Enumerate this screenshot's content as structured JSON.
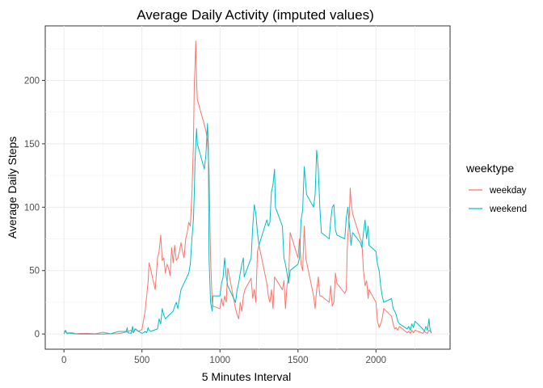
{
  "chart_data": {
    "type": "line",
    "title": "Average Daily Activity (imputed values)",
    "xlabel": "5 Minutes Interval",
    "ylabel": "Average Daily Steps",
    "xlim": [
      -120,
      2475
    ],
    "ylim": [
      -12,
      243
    ],
    "xticks": [
      0,
      500,
      1000,
      1500,
      2000
    ],
    "yticks": [
      0,
      50,
      100,
      150,
      200
    ],
    "grid": true,
    "legend": {
      "title": "weektype",
      "placement": "right"
    },
    "series": [
      {
        "name": "weekday",
        "color": "#F8766D",
        "points": [
          [
            0,
            2.3
          ],
          [
            25,
            0.4
          ],
          [
            50,
            1.2
          ],
          [
            75,
            0.2
          ],
          [
            100,
            0.4
          ],
          [
            150,
            0.5
          ],
          [
            200,
            0.1
          ],
          [
            250,
            1.4
          ],
          [
            300,
            0.1
          ],
          [
            350,
            0.3
          ],
          [
            400,
            1.5
          ],
          [
            430,
            3
          ],
          [
            445,
            1.2
          ],
          [
            460,
            4
          ],
          [
            475,
            2
          ],
          [
            500,
            3.5
          ],
          [
            520,
            18
          ],
          [
            540,
            42
          ],
          [
            545,
            56
          ],
          [
            555,
            52
          ],
          [
            570,
            43
          ],
          [
            585,
            35
          ],
          [
            600,
            60
          ],
          [
            610,
            65
          ],
          [
            620,
            78
          ],
          [
            630,
            58
          ],
          [
            640,
            60
          ],
          [
            650,
            48
          ],
          [
            660,
            55
          ],
          [
            670,
            52
          ],
          [
            680,
            46
          ],
          [
            690,
            68
          ],
          [
            700,
            56
          ],
          [
            710,
            70
          ],
          [
            720,
            58
          ],
          [
            730,
            60
          ],
          [
            740,
            65
          ],
          [
            750,
            72
          ],
          [
            760,
            65
          ],
          [
            770,
            60
          ],
          [
            780,
            75
          ],
          [
            790,
            80
          ],
          [
            800,
            88
          ],
          [
            810,
            85
          ],
          [
            820,
            110
          ],
          [
            830,
            150
          ],
          [
            835,
            195
          ],
          [
            840,
            210
          ],
          [
            845,
            231
          ],
          [
            850,
            200
          ],
          [
            855,
            185
          ],
          [
            900,
            165
          ],
          [
            910,
            160
          ],
          [
            920,
            152
          ],
          [
            930,
            130
          ],
          [
            940,
            60
          ],
          [
            950,
            25
          ],
          [
            955,
            22
          ],
          [
            1000,
            20
          ],
          [
            1010,
            28
          ],
          [
            1020,
            22
          ],
          [
            1030,
            30
          ],
          [
            1040,
            25
          ],
          [
            1050,
            52
          ],
          [
            1100,
            20
          ],
          [
            1110,
            15
          ],
          [
            1120,
            12
          ],
          [
            1130,
            25
          ],
          [
            1140,
            18
          ],
          [
            1150,
            30
          ],
          [
            1160,
            35
          ],
          [
            1200,
            44
          ],
          [
            1210,
            28
          ],
          [
            1220,
            35
          ],
          [
            1230,
            25
          ],
          [
            1240,
            65
          ],
          [
            1250,
            70
          ],
          [
            1300,
            40
          ],
          [
            1310,
            30
          ],
          [
            1320,
            25
          ],
          [
            1330,
            35
          ],
          [
            1340,
            20
          ],
          [
            1350,
            45
          ],
          [
            1400,
            35
          ],
          [
            1410,
            42
          ],
          [
            1420,
            20
          ],
          [
            1430,
            38
          ],
          [
            1440,
            45
          ],
          [
            1450,
            80
          ],
          [
            1500,
            60
          ],
          [
            1510,
            75
          ],
          [
            1520,
            55
          ],
          [
            1530,
            50
          ],
          [
            1540,
            85
          ],
          [
            1550,
            60
          ],
          [
            1600,
            30
          ],
          [
            1610,
            20
          ],
          [
            1620,
            35
          ],
          [
            1630,
            45
          ],
          [
            1640,
            30
          ],
          [
            1650,
            30
          ],
          [
            1700,
            25
          ],
          [
            1710,
            38
          ],
          [
            1720,
            22
          ],
          [
            1730,
            25
          ],
          [
            1740,
            48
          ],
          [
            1750,
            40
          ],
          [
            1800,
            32
          ],
          [
            1810,
            35
          ],
          [
            1815,
            65
          ],
          [
            1820,
            78
          ],
          [
            1830,
            95
          ],
          [
            1835,
            115
          ],
          [
            1840,
            105
          ],
          [
            1850,
            95
          ],
          [
            1900,
            75
          ],
          [
            1910,
            72
          ],
          [
            1920,
            50
          ],
          [
            1930,
            38
          ],
          [
            1940,
            42
          ],
          [
            1950,
            28
          ],
          [
            1955,
            35
          ],
          [
            2000,
            25
          ],
          [
            2010,
            10
          ],
          [
            2020,
            5
          ],
          [
            2030,
            8
          ],
          [
            2040,
            12
          ],
          [
            2050,
            20
          ],
          [
            2100,
            14
          ],
          [
            2110,
            8
          ],
          [
            2120,
            4
          ],
          [
            2130,
            5
          ],
          [
            2140,
            3
          ],
          [
            2150,
            6
          ],
          [
            2200,
            1
          ],
          [
            2210,
            2
          ],
          [
            2220,
            0.5
          ],
          [
            2230,
            3
          ],
          [
            2240,
            1
          ],
          [
            2250,
            3
          ],
          [
            2300,
            0.5
          ],
          [
            2310,
            2
          ],
          [
            2320,
            1
          ],
          [
            2330,
            0.5
          ],
          [
            2340,
            3
          ],
          [
            2355,
            1.5
          ]
        ]
      },
      {
        "name": "weekend",
        "color": "#00BFC4",
        "points": [
          [
            0,
            0
          ],
          [
            10,
            3
          ],
          [
            20,
            0.2
          ],
          [
            30,
            1
          ],
          [
            40,
            0.5
          ],
          [
            55,
            0.3
          ],
          [
            100,
            0
          ],
          [
            150,
            0
          ],
          [
            200,
            0
          ],
          [
            250,
            0
          ],
          [
            300,
            0.2
          ],
          [
            350,
            2
          ],
          [
            400,
            2
          ],
          [
            405,
            5
          ],
          [
            410,
            1
          ],
          [
            430,
            0.5
          ],
          [
            440,
            6
          ],
          [
            445,
            1
          ],
          [
            455,
            4
          ],
          [
            500,
            0.5
          ],
          [
            510,
            1
          ],
          [
            520,
            2
          ],
          [
            530,
            1
          ],
          [
            540,
            5
          ],
          [
            545,
            3
          ],
          [
            555,
            2
          ],
          [
            600,
            4
          ],
          [
            610,
            12
          ],
          [
            620,
            8
          ],
          [
            630,
            20
          ],
          [
            640,
            15
          ],
          [
            650,
            12
          ],
          [
            700,
            18
          ],
          [
            710,
            22
          ],
          [
            720,
            25
          ],
          [
            730,
            20
          ],
          [
            740,
            28
          ],
          [
            750,
            35
          ],
          [
            800,
            48
          ],
          [
            810,
            55
          ],
          [
            820,
            75
          ],
          [
            830,
            90
          ],
          [
            835,
            110
          ],
          [
            840,
            135
          ],
          [
            845,
            150
          ],
          [
            850,
            162
          ],
          [
            855,
            150
          ],
          [
            900,
            130
          ],
          [
            910,
            142
          ],
          [
            920,
            166
          ],
          [
            925,
            150
          ],
          [
            930,
            60
          ],
          [
            940,
            25
          ],
          [
            950,
            18
          ],
          [
            955,
            30
          ],
          [
            1000,
            30
          ],
          [
            1010,
            40
          ],
          [
            1020,
            45
          ],
          [
            1030,
            60
          ],
          [
            1040,
            45
          ],
          [
            1050,
            38
          ],
          [
            1100,
            25
          ],
          [
            1110,
            35
          ],
          [
            1120,
            40
          ],
          [
            1130,
            48
          ],
          [
            1140,
            55
          ],
          [
            1150,
            60
          ],
          [
            1155,
            45
          ],
          [
            1200,
            60
          ],
          [
            1210,
            85
          ],
          [
            1220,
            102
          ],
          [
            1230,
            95
          ],
          [
            1240,
            80
          ],
          [
            1250,
            70
          ],
          [
            1300,
            90
          ],
          [
            1310,
            85
          ],
          [
            1320,
            88
          ],
          [
            1330,
            112
          ],
          [
            1340,
            118
          ],
          [
            1350,
            130
          ],
          [
            1355,
            100
          ],
          [
            1400,
            85
          ],
          [
            1410,
            60
          ],
          [
            1420,
            55
          ],
          [
            1430,
            48
          ],
          [
            1440,
            40
          ],
          [
            1450,
            50
          ],
          [
            1500,
            55
          ],
          [
            1510,
            60
          ],
          [
            1520,
            90
          ],
          [
            1530,
            98
          ],
          [
            1540,
            132
          ],
          [
            1550,
            118
          ],
          [
            1555,
            110
          ],
          [
            1600,
            100
          ],
          [
            1610,
            110
          ],
          [
            1620,
            145
          ],
          [
            1630,
            130
          ],
          [
            1640,
            100
          ],
          [
            1650,
            80
          ],
          [
            1700,
            75
          ],
          [
            1710,
            90
          ],
          [
            1720,
            100
          ],
          [
            1730,
            102
          ],
          [
            1740,
            82
          ],
          [
            1750,
            78
          ],
          [
            1800,
            75
          ],
          [
            1810,
            92
          ],
          [
            1820,
            100
          ],
          [
            1830,
            85
          ],
          [
            1840,
            70
          ],
          [
            1850,
            80
          ],
          [
            1900,
            72
          ],
          [
            1910,
            68
          ],
          [
            1920,
            80
          ],
          [
            1930,
            90
          ],
          [
            1940,
            75
          ],
          [
            1950,
            85
          ],
          [
            1955,
            70
          ],
          [
            2000,
            65
          ],
          [
            2010,
            55
          ],
          [
            2020,
            50
          ],
          [
            2030,
            38
          ],
          [
            2040,
            30
          ],
          [
            2050,
            25
          ],
          [
            2100,
            28
          ],
          [
            2110,
            20
          ],
          [
            2120,
            18
          ],
          [
            2130,
            15
          ],
          [
            2140,
            10
          ],
          [
            2150,
            8
          ],
          [
            2200,
            4
          ],
          [
            2210,
            6
          ],
          [
            2220,
            3
          ],
          [
            2230,
            8
          ],
          [
            2240,
            5
          ],
          [
            2250,
            10
          ],
          [
            2300,
            4
          ],
          [
            2310,
            2
          ],
          [
            2320,
            6
          ],
          [
            2330,
            3
          ],
          [
            2340,
            12
          ],
          [
            2345,
            5
          ],
          [
            2355,
            0.5
          ]
        ]
      }
    ]
  }
}
